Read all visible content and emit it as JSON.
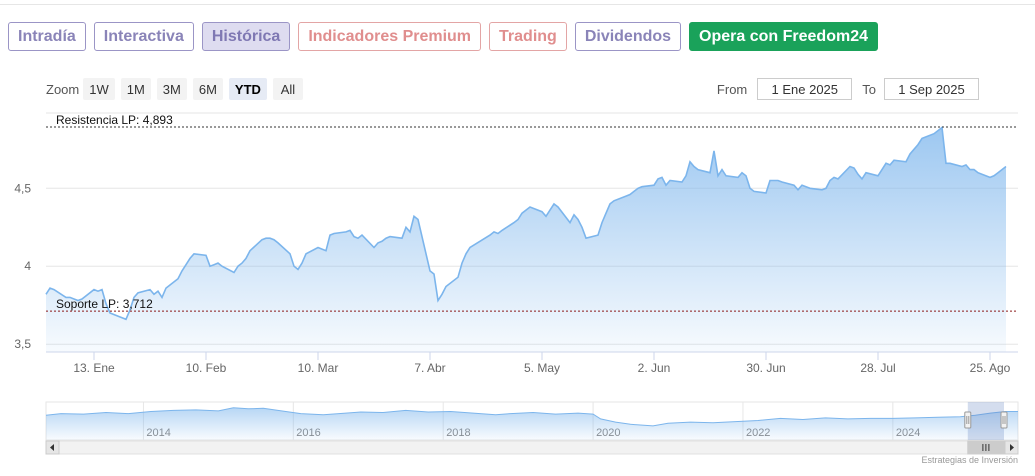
{
  "tabs": [
    {
      "label": "Intradía",
      "style": "normal"
    },
    {
      "label": "Interactiva",
      "style": "normal"
    },
    {
      "label": "Histórica",
      "style": "active"
    },
    {
      "label": "Indicadores Premium",
      "style": "premium"
    },
    {
      "label": "Trading",
      "style": "premium"
    },
    {
      "label": "Dividendos",
      "style": "normal"
    },
    {
      "label": "Opera con Freedom24",
      "style": "cta"
    }
  ],
  "zoom": {
    "label": "Zoom",
    "buttons": [
      "1W",
      "1M",
      "3M",
      "6M",
      "YTD",
      "All"
    ],
    "selected": "YTD"
  },
  "range": {
    "from_label": "From",
    "from_value": "1 Ene 2025",
    "to_label": "To",
    "to_value": "1 Sep 2025"
  },
  "credit": "Estrategias de Inversión",
  "colors": {
    "line": "#7cb5ec",
    "resistance": "#333333",
    "support": "#8b1a1a",
    "accent": "#1aa25a"
  },
  "chart_data": {
    "type": "area",
    "title": "",
    "xlabel": "",
    "ylabel": "",
    "ylim": [
      3.45,
      4.97
    ],
    "yticks": [
      {
        "value": 3.5,
        "label": "3,5"
      },
      {
        "value": 4,
        "label": "4"
      },
      {
        "value": 4.5,
        "label": "4,5"
      }
    ],
    "xlim": [
      "2025-01-01",
      "2025-09-01"
    ],
    "xticks": [
      {
        "date": "2025-01-13",
        "label": "13. Ene"
      },
      {
        "date": "2025-02-10",
        "label": "10. Feb"
      },
      {
        "date": "2025-03-10",
        "label": "10. Mar"
      },
      {
        "date": "2025-04-07",
        "label": "7. Abr"
      },
      {
        "date": "2025-05-05",
        "label": "5. May"
      },
      {
        "date": "2025-06-02",
        "label": "2. Jun"
      },
      {
        "date": "2025-06-30",
        "label": "30. Jun"
      },
      {
        "date": "2025-07-28",
        "label": "28. Jul"
      },
      {
        "date": "2025-08-25",
        "label": "25. Ago"
      }
    ],
    "plotlines": [
      {
        "label": "Resistencia LP: 4,893",
        "value": 4.893
      },
      {
        "label": "Soporte LP: 3,712",
        "value": 3.712
      }
    ],
    "grid": true,
    "legend": "none",
    "series": [
      {
        "points": [
          [
            "2025-01-01",
            3.82
          ],
          [
            "2025-01-02",
            3.86
          ],
          [
            "2025-01-03",
            3.85
          ],
          [
            "2025-01-06",
            3.8
          ],
          [
            "2025-01-07",
            3.8
          ],
          [
            "2025-01-08",
            3.79
          ],
          [
            "2025-01-09",
            3.78
          ],
          [
            "2025-01-10",
            3.79
          ],
          [
            "2025-01-13",
            3.85
          ],
          [
            "2025-01-14",
            3.84
          ],
          [
            "2025-01-15",
            3.85
          ],
          [
            "2025-01-16",
            3.76
          ],
          [
            "2025-01-17",
            3.7
          ],
          [
            "2025-01-20",
            3.67
          ],
          [
            "2025-01-21",
            3.66
          ],
          [
            "2025-01-22",
            3.72
          ],
          [
            "2025-01-23",
            3.8
          ],
          [
            "2025-01-24",
            3.83
          ],
          [
            "2025-01-27",
            3.85
          ],
          [
            "2025-01-28",
            3.82
          ],
          [
            "2025-01-29",
            3.84
          ],
          [
            "2025-01-30",
            3.8
          ],
          [
            "2025-01-31",
            3.86
          ],
          [
            "2025-02-03",
            3.92
          ],
          [
            "2025-02-04",
            3.97
          ],
          [
            "2025-02-05",
            4.01
          ],
          [
            "2025-02-06",
            4.05
          ],
          [
            "2025-02-07",
            4.08
          ],
          [
            "2025-02-10",
            4.07
          ],
          [
            "2025-02-11",
            4.0
          ],
          [
            "2025-02-12",
            4.01
          ],
          [
            "2025-02-13",
            4.02
          ],
          [
            "2025-02-14",
            4.0
          ],
          [
            "2025-02-17",
            3.96
          ],
          [
            "2025-02-18",
            4.0
          ],
          [
            "2025-02-19",
            4.02
          ],
          [
            "2025-02-20",
            4.05
          ],
          [
            "2025-02-21",
            4.1
          ],
          [
            "2025-02-24",
            4.17
          ],
          [
            "2025-02-25",
            4.18
          ],
          [
            "2025-02-26",
            4.18
          ],
          [
            "2025-02-27",
            4.17
          ],
          [
            "2025-02-28",
            4.15
          ],
          [
            "2025-03-03",
            4.08
          ],
          [
            "2025-03-04",
            4.0
          ],
          [
            "2025-03-05",
            3.98
          ],
          [
            "2025-03-06",
            4.02
          ],
          [
            "2025-03-07",
            4.08
          ],
          [
            "2025-03-10",
            4.12
          ],
          [
            "2025-03-11",
            4.11
          ],
          [
            "2025-03-12",
            4.1
          ],
          [
            "2025-03-13",
            4.2
          ],
          [
            "2025-03-14",
            4.21
          ],
          [
            "2025-03-17",
            4.22
          ],
          [
            "2025-03-18",
            4.23
          ],
          [
            "2025-03-19",
            4.19
          ],
          [
            "2025-03-20",
            4.18
          ],
          [
            "2025-03-21",
            4.2
          ],
          [
            "2025-03-24",
            4.12
          ],
          [
            "2025-03-25",
            4.15
          ],
          [
            "2025-03-26",
            4.16
          ],
          [
            "2025-03-27",
            4.18
          ],
          [
            "2025-03-28",
            4.19
          ],
          [
            "2025-03-31",
            4.18
          ],
          [
            "2025-04-01",
            4.25
          ],
          [
            "2025-04-02",
            4.22
          ],
          [
            "2025-04-03",
            4.32
          ],
          [
            "2025-04-04",
            4.3
          ],
          [
            "2025-04-07",
            3.97
          ],
          [
            "2025-04-08",
            3.95
          ],
          [
            "2025-04-09",
            3.78
          ],
          [
            "2025-04-10",
            3.82
          ],
          [
            "2025-04-11",
            3.87
          ],
          [
            "2025-04-14",
            3.93
          ],
          [
            "2025-04-15",
            4.02
          ],
          [
            "2025-04-16",
            4.08
          ],
          [
            "2025-04-17",
            4.12
          ],
          [
            "2025-04-22",
            4.2
          ],
          [
            "2025-04-23",
            4.22
          ],
          [
            "2025-04-24",
            4.21
          ],
          [
            "2025-04-25",
            4.23
          ],
          [
            "2025-04-28",
            4.28
          ],
          [
            "2025-04-29",
            4.3
          ],
          [
            "2025-04-30",
            4.34
          ],
          [
            "2025-05-02",
            4.38
          ],
          [
            "2025-05-05",
            4.35
          ],
          [
            "2025-05-06",
            4.32
          ],
          [
            "2025-05-07",
            4.36
          ],
          [
            "2025-05-08",
            4.4
          ],
          [
            "2025-05-09",
            4.38
          ],
          [
            "2025-05-12",
            4.28
          ],
          [
            "2025-05-13",
            4.33
          ],
          [
            "2025-05-14",
            4.3
          ],
          [
            "2025-05-15",
            4.25
          ],
          [
            "2025-05-16",
            4.18
          ],
          [
            "2025-05-19",
            4.2
          ],
          [
            "2025-05-20",
            4.28
          ],
          [
            "2025-05-21",
            4.34
          ],
          [
            "2025-05-22",
            4.4
          ],
          [
            "2025-05-23",
            4.42
          ],
          [
            "2025-05-26",
            4.45
          ],
          [
            "2025-05-27",
            4.46
          ],
          [
            "2025-05-28",
            4.48
          ],
          [
            "2025-05-29",
            4.5
          ],
          [
            "2025-05-30",
            4.51
          ],
          [
            "2025-06-02",
            4.52
          ],
          [
            "2025-06-03",
            4.56
          ],
          [
            "2025-06-04",
            4.57
          ],
          [
            "2025-06-05",
            4.52
          ],
          [
            "2025-06-06",
            4.55
          ],
          [
            "2025-06-09",
            4.54
          ],
          [
            "2025-06-10",
            4.58
          ],
          [
            "2025-06-11",
            4.67
          ],
          [
            "2025-06-12",
            4.64
          ],
          [
            "2025-06-13",
            4.62
          ],
          [
            "2025-06-16",
            4.6
          ],
          [
            "2025-06-17",
            4.74
          ],
          [
            "2025-06-18",
            4.58
          ],
          [
            "2025-06-19",
            4.62
          ],
          [
            "2025-06-20",
            4.58
          ],
          [
            "2025-06-23",
            4.57
          ],
          [
            "2025-06-24",
            4.6
          ],
          [
            "2025-06-25",
            4.58
          ],
          [
            "2025-06-26",
            4.5
          ],
          [
            "2025-06-27",
            4.48
          ],
          [
            "2025-06-30",
            4.47
          ],
          [
            "2025-07-01",
            4.55
          ],
          [
            "2025-07-02",
            4.55
          ],
          [
            "2025-07-03",
            4.55
          ],
          [
            "2025-07-04",
            4.54
          ],
          [
            "2025-07-07",
            4.52
          ],
          [
            "2025-07-08",
            4.49
          ],
          [
            "2025-07-09",
            4.52
          ],
          [
            "2025-07-10",
            4.51
          ],
          [
            "2025-07-11",
            4.5
          ],
          [
            "2025-07-14",
            4.49
          ],
          [
            "2025-07-15",
            4.5
          ],
          [
            "2025-07-16",
            4.55
          ],
          [
            "2025-07-17",
            4.57
          ],
          [
            "2025-07-18",
            4.56
          ],
          [
            "2025-07-21",
            4.64
          ],
          [
            "2025-07-22",
            4.63
          ],
          [
            "2025-07-23",
            4.59
          ],
          [
            "2025-07-24",
            4.56
          ],
          [
            "2025-07-25",
            4.6
          ],
          [
            "2025-07-28",
            4.58
          ],
          [
            "2025-07-29",
            4.62
          ],
          [
            "2025-07-30",
            4.66
          ],
          [
            "2025-07-31",
            4.65
          ],
          [
            "2025-08-01",
            4.68
          ],
          [
            "2025-08-04",
            4.67
          ],
          [
            "2025-08-05",
            4.72
          ],
          [
            "2025-08-06",
            4.75
          ],
          [
            "2025-08-07",
            4.78
          ],
          [
            "2025-08-08",
            4.82
          ],
          [
            "2025-08-11",
            4.85
          ],
          [
            "2025-08-12",
            4.87
          ],
          [
            "2025-08-13",
            4.89
          ],
          [
            "2025-08-14",
            4.66
          ],
          [
            "2025-08-15",
            4.66
          ],
          [
            "2025-08-18",
            4.64
          ],
          [
            "2025-08-19",
            4.65
          ],
          [
            "2025-08-20",
            4.62
          ],
          [
            "2025-08-21",
            4.62
          ],
          [
            "2025-08-22",
            4.6
          ],
          [
            "2025-08-25",
            4.57
          ],
          [
            "2025-08-26",
            4.58
          ],
          [
            "2025-08-27",
            4.6
          ],
          [
            "2025-08-28",
            4.62
          ],
          [
            "2025-08-29",
            4.64
          ]
        ]
      }
    ]
  },
  "navigator": {
    "year_labels": [
      "2014",
      "2016",
      "2018",
      "2020",
      "2022",
      "2024"
    ],
    "years": [
      2014,
      2016,
      2018,
      2020,
      2022,
      2024
    ],
    "xlim": [
      2012.7,
      2025.67
    ],
    "series": [
      [
        2012.7,
        3.9
      ],
      [
        2012.9,
        4.2
      ],
      [
        2013.2,
        4.1
      ],
      [
        2013.5,
        4.4
      ],
      [
        2013.8,
        4.2
      ],
      [
        2014.1,
        4.6
      ],
      [
        2014.4,
        4.8
      ],
      [
        2014.7,
        4.9
      ],
      [
        2015.0,
        4.7
      ],
      [
        2015.2,
        5.3
      ],
      [
        2015.4,
        5.1
      ],
      [
        2015.6,
        5.2
      ],
      [
        2015.9,
        4.6
      ],
      [
        2016.1,
        4.2
      ],
      [
        2016.4,
        4.0
      ],
      [
        2016.7,
        4.3
      ],
      [
        2016.9,
        4.5
      ],
      [
        2017.2,
        4.4
      ],
      [
        2017.5,
        4.8
      ],
      [
        2017.8,
        4.5
      ],
      [
        2018.1,
        4.6
      ],
      [
        2018.4,
        4.3
      ],
      [
        2018.7,
        4.0
      ],
      [
        2018.9,
        4.2
      ],
      [
        2019.2,
        4.4
      ],
      [
        2019.5,
        4.1
      ],
      [
        2019.8,
        4.3
      ],
      [
        2020.0,
        4.1
      ],
      [
        2020.1,
        3.2
      ],
      [
        2020.3,
        2.6
      ],
      [
        2020.5,
        2.2
      ],
      [
        2020.8,
        1.9
      ],
      [
        2021.0,
        2.4
      ],
      [
        2021.3,
        2.6
      ],
      [
        2021.6,
        2.5
      ],
      [
        2021.9,
        2.7
      ],
      [
        2022.2,
        2.9
      ],
      [
        2022.5,
        3.3
      ],
      [
        2022.8,
        3.1
      ],
      [
        2023.1,
        3.4
      ],
      [
        2023.4,
        3.2
      ],
      [
        2023.7,
        3.3
      ],
      [
        2024.0,
        3.3
      ],
      [
        2024.3,
        3.4
      ],
      [
        2024.6,
        3.5
      ],
      [
        2024.9,
        3.6
      ],
      [
        2025.1,
        3.9
      ],
      [
        2025.3,
        4.3
      ],
      [
        2025.5,
        4.6
      ],
      [
        2025.67,
        4.6
      ]
    ]
  }
}
